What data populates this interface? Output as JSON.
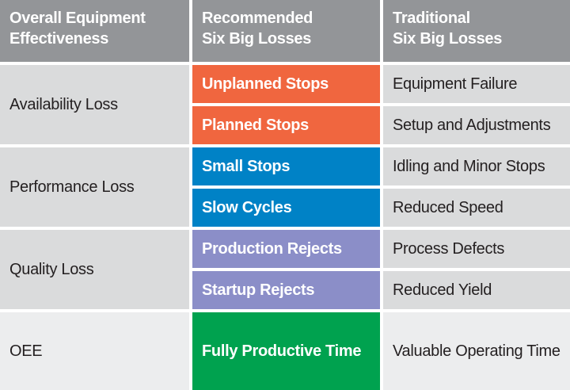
{
  "colors": {
    "header_gray": "#939598",
    "row_gray": "#DADBDC",
    "footer_gray": "#ECEDEE",
    "availability_orange": "#F0663F",
    "performance_blue": "#0082C6",
    "quality_purple": "#8B8EC8",
    "oee_green": "#00A24F",
    "text_dark": "#231F20",
    "text_white": "#FFFFFF",
    "gutter_white": "#FFFFFF"
  },
  "table": {
    "header": {
      "col1": "Overall Equipment\nEffectiveness",
      "col2": "Recommended\nSix Big Losses",
      "col3": "Traditional\nSix Big Losses"
    },
    "groups": [
      {
        "category": "Availability Loss",
        "color": "#F0663F",
        "rows": [
          {
            "recommended": "Unplanned Stops",
            "traditional": "Equipment Failure"
          },
          {
            "recommended": "Planned Stops",
            "traditional": "Setup and Adjustments"
          }
        ]
      },
      {
        "category": "Performance Loss",
        "color": "#0082C6",
        "rows": [
          {
            "recommended": "Small Stops",
            "traditional": "Idling and Minor Stops"
          },
          {
            "recommended": "Slow Cycles",
            "traditional": "Reduced Speed"
          }
        ]
      },
      {
        "category": "Quality Loss",
        "color": "#8B8EC8",
        "rows": [
          {
            "recommended": "Production Rejects",
            "traditional": "Process Defects"
          },
          {
            "recommended": "Startup Rejects",
            "traditional": "Reduced Yield"
          }
        ]
      }
    ],
    "footer": {
      "category": "OEE",
      "color": "#00A24F",
      "recommended": "Fully Productive Time",
      "traditional": "Valuable Operating Time"
    }
  },
  "chart_data": {
    "type": "table",
    "columns": [
      "Overall Equipment Effectiveness",
      "Recommended Six Big Losses",
      "Traditional Six Big Losses"
    ],
    "rows": [
      [
        "Availability Loss",
        "Unplanned Stops",
        "Equipment Failure"
      ],
      [
        "Availability Loss",
        "Planned Stops",
        "Setup and Adjustments"
      ],
      [
        "Performance Loss",
        "Small Stops",
        "Idling and Minor Stops"
      ],
      [
        "Performance Loss",
        "Slow Cycles",
        "Reduced Speed"
      ],
      [
        "Quality Loss",
        "Production Rejects",
        "Process Defects"
      ],
      [
        "Quality Loss",
        "Startup Rejects",
        "Reduced Yield"
      ],
      [
        "OEE",
        "Fully Productive Time",
        "Valuable Operating Time"
      ]
    ]
  }
}
